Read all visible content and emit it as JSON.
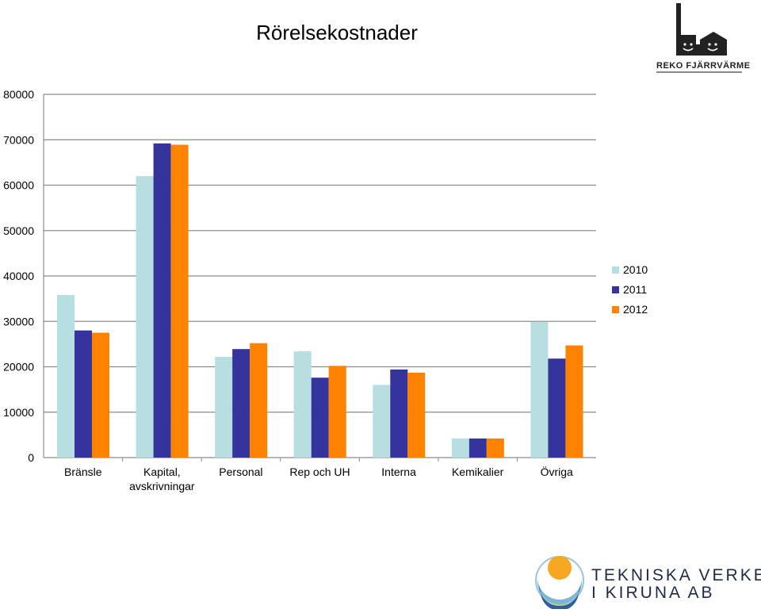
{
  "logos": {
    "top": {
      "caption": "REKO FJÄRRVÄRME"
    },
    "bottom": {
      "line1": "TEKNISKA VERKEN",
      "line2": "I KIRUNA AB"
    }
  },
  "chart_data": {
    "type": "bar",
    "title": "Rörelsekostnader",
    "categories": [
      "Bränsle",
      "Kapital,\navskrivningar",
      "Personal",
      "Rep och UH",
      "Interna",
      "Kemikalier",
      "Övriga"
    ],
    "series": [
      {
        "name": "2010",
        "color": "#b7dfe2",
        "values": [
          35800,
          62000,
          22200,
          23400,
          16000,
          4200,
          29900
        ]
      },
      {
        "name": "2011",
        "color": "#35339c",
        "values": [
          28000,
          69200,
          23900,
          17600,
          19400,
          4200,
          21800
        ]
      },
      {
        "name": "2012",
        "color": "#ff8200",
        "values": [
          27500,
          68900,
          25200,
          20200,
          18700,
          4200,
          24700
        ]
      }
    ],
    "ylim": [
      0,
      80000
    ],
    "yticks": [
      0,
      10000,
      20000,
      30000,
      40000,
      50000,
      60000,
      70000,
      80000
    ],
    "grid": true,
    "legend": "right"
  }
}
